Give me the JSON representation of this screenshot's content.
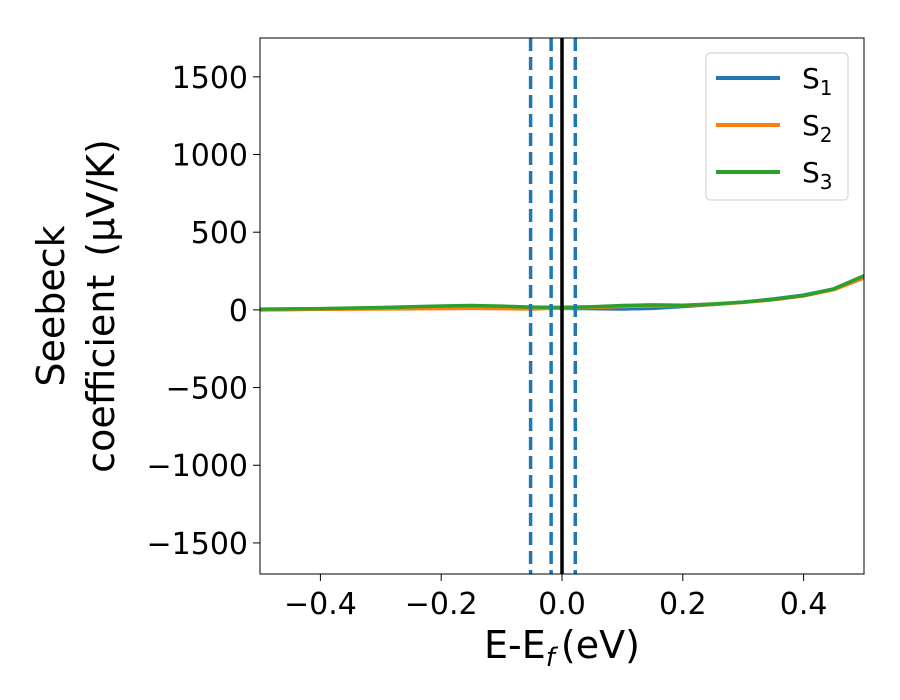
{
  "chart_data": {
    "type": "line",
    "xlabel": "E-E",
    "xlabel_sub": "f",
    "xlabel_unit": "(eV)",
    "ylabel_line1": "Seebeck",
    "ylabel_line2": "coefficient",
    "ylabel_unit": "(μV/K)",
    "xlim": [
      -0.5,
      0.5
    ],
    "ylim": [
      -1700,
      1750
    ],
    "x_ticks": [
      -0.4,
      -0.2,
      0.0,
      0.2,
      0.4
    ],
    "x_tick_labels": [
      "−0.4",
      "−0.2",
      "0.0",
      "0.2",
      "0.4"
    ],
    "y_ticks": [
      -1500,
      -1000,
      -500,
      0,
      500,
      1000,
      1500
    ],
    "y_tick_labels": [
      "−1500",
      "−1000",
      "−500",
      "0",
      "500",
      "1000",
      "1500"
    ],
    "legend_position": "top-right",
    "series": [
      {
        "name": "S",
        "sub": "1",
        "color": "#1f77b4",
        "x": [
          -0.5,
          -0.4,
          -0.3,
          -0.2,
          -0.15,
          -0.1,
          -0.05,
          0.0,
          0.05,
          0.1,
          0.15,
          0.2,
          0.25,
          0.3,
          0.35,
          0.4,
          0.45,
          0.5
        ],
        "y": [
          0,
          5,
          12,
          20,
          22,
          18,
          12,
          10,
          8,
          6,
          10,
          22,
          35,
          50,
          70,
          95,
          135,
          215
        ]
      },
      {
        "name": "S",
        "sub": "2",
        "color": "#ff7f0e",
        "x": [
          -0.5,
          -0.4,
          -0.3,
          -0.2,
          -0.15,
          -0.1,
          -0.05,
          0.0,
          0.05,
          0.1,
          0.15,
          0.2,
          0.25,
          0.3,
          0.35,
          0.4,
          0.45,
          0.5
        ],
        "y": [
          2,
          4,
          6,
          8,
          10,
          8,
          6,
          12,
          15,
          22,
          25,
          28,
          35,
          48,
          65,
          90,
          130,
          205
        ]
      },
      {
        "name": "S",
        "sub": "3",
        "color": "#2ca02c",
        "x": [
          -0.5,
          -0.4,
          -0.3,
          -0.2,
          -0.15,
          -0.1,
          -0.05,
          0.0,
          0.05,
          0.1,
          0.15,
          0.2,
          0.25,
          0.3,
          0.35,
          0.4,
          0.45,
          0.5
        ],
        "y": [
          5,
          8,
          15,
          25,
          28,
          24,
          18,
          16,
          20,
          28,
          32,
          30,
          38,
          50,
          68,
          92,
          135,
          220
        ]
      }
    ],
    "vlines": [
      {
        "x": -0.052,
        "color": "#1f77b4",
        "style": "dashed"
      },
      {
        "x": -0.018,
        "color": "#1f77b4",
        "style": "dashed"
      },
      {
        "x": 0.0,
        "color": "#000000",
        "style": "solid"
      },
      {
        "x": 0.022,
        "color": "#1f77b4",
        "style": "dashed"
      }
    ]
  }
}
